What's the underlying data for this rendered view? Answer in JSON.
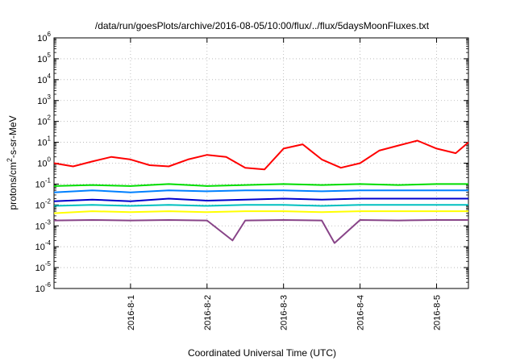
{
  "chart_data": {
    "type": "line",
    "title": "/data/run/goesPlots/archive/2016-08-05/10:00/flux/../flux/5daysMoonFluxes.txt",
    "xlabel": "Coordinated Universal Time (UTC)",
    "ylabel_parts": {
      "base": "protons/cm",
      "exp": "2",
      "tail": "-s-sr-MeV"
    },
    "yscale": "log",
    "ylim": [
      1e-06,
      1000000.0
    ],
    "y_ticks": [
      {
        "base": "10",
        "exp": "-6"
      },
      {
        "base": "10",
        "exp": "-5"
      },
      {
        "base": "10",
        "exp": "-4"
      },
      {
        "base": "10",
        "exp": "-3"
      },
      {
        "base": "10",
        "exp": "-2"
      },
      {
        "base": "10",
        "exp": "-1"
      },
      {
        "base": "10",
        "exp": "0"
      },
      {
        "base": "10",
        "exp": "1"
      },
      {
        "base": "10",
        "exp": "2"
      },
      {
        "base": "10",
        "exp": "3"
      },
      {
        "base": "10",
        "exp": "4"
      },
      {
        "base": "10",
        "exp": "5"
      },
      {
        "base": "10",
        "exp": "6"
      }
    ],
    "xlim": [
      "2016-07-31 00:00",
      "2016-08-05 10:00"
    ],
    "x_ticks": [
      "2016-8-1",
      "2016-8-2",
      "2016-8-3",
      "2016-8-4",
      "2016-8-5"
    ],
    "grid": true,
    "series": [
      {
        "color": "#ff0000",
        "x": [
          "2016-07-31 00:00",
          "2016-07-31 06:00",
          "2016-07-31 12:00",
          "2016-07-31 18:00",
          "2016-08-01 00:00",
          "2016-08-01 06:00",
          "2016-08-01 12:00",
          "2016-08-01 18:00",
          "2016-08-02 00:00",
          "2016-08-02 06:00",
          "2016-08-02 12:00",
          "2016-08-02 18:00",
          "2016-08-03 00:00",
          "2016-08-03 06:00",
          "2016-08-03 12:00",
          "2016-08-03 18:00",
          "2016-08-04 00:00",
          "2016-08-04 06:00",
          "2016-08-04 12:00",
          "2016-08-04 18:00",
          "2016-08-05 00:00",
          "2016-08-05 06:00",
          "2016-08-05 10:00"
        ],
        "y": [
          1.0,
          0.7,
          1.2,
          2.0,
          1.5,
          0.8,
          0.7,
          1.5,
          2.5,
          2.0,
          0.6,
          0.5,
          5,
          8,
          1.5,
          0.6,
          1.0,
          4,
          7,
          12,
          5,
          3,
          10
        ]
      },
      {
        "color": "#00dd00",
        "x": [
          "2016-07-31 00:00",
          "2016-07-31 12:00",
          "2016-08-01 00:00",
          "2016-08-01 12:00",
          "2016-08-02 00:00",
          "2016-08-02 12:00",
          "2016-08-03 00:00",
          "2016-08-03 12:00",
          "2016-08-04 00:00",
          "2016-08-04 12:00",
          "2016-08-05 00:00",
          "2016-08-05 10:00"
        ],
        "y": [
          0.08,
          0.09,
          0.08,
          0.1,
          0.08,
          0.09,
          0.1,
          0.09,
          0.1,
          0.09,
          0.1,
          0.1
        ]
      },
      {
        "color": "#0080ff",
        "x": [
          "2016-07-31 00:00",
          "2016-07-31 12:00",
          "2016-08-01 00:00",
          "2016-08-01 12:00",
          "2016-08-02 00:00",
          "2016-08-02 12:00",
          "2016-08-03 00:00",
          "2016-08-03 12:00",
          "2016-08-04 00:00",
          "2016-08-04 12:00",
          "2016-08-05 00:00",
          "2016-08-05 10:00"
        ],
        "y": [
          0.04,
          0.05,
          0.04,
          0.05,
          0.045,
          0.05,
          0.05,
          0.045,
          0.05,
          0.05,
          0.05,
          0.05
        ]
      },
      {
        "color": "#0000cc",
        "x": [
          "2016-07-31 00:00",
          "2016-07-31 12:00",
          "2016-08-01 00:00",
          "2016-08-01 12:00",
          "2016-08-02 00:00",
          "2016-08-02 12:00",
          "2016-08-03 00:00",
          "2016-08-03 12:00",
          "2016-08-04 00:00",
          "2016-08-04 12:00",
          "2016-08-05 00:00",
          "2016-08-05 10:00"
        ],
        "y": [
          0.015,
          0.018,
          0.015,
          0.02,
          0.016,
          0.018,
          0.02,
          0.018,
          0.02,
          0.02,
          0.02,
          0.02
        ]
      },
      {
        "color": "#00c0c0",
        "x": [
          "2016-07-31 00:00",
          "2016-07-31 12:00",
          "2016-08-01 00:00",
          "2016-08-01 12:00",
          "2016-08-02 00:00",
          "2016-08-02 12:00",
          "2016-08-03 00:00",
          "2016-08-03 12:00",
          "2016-08-04 00:00",
          "2016-08-04 12:00",
          "2016-08-05 00:00",
          "2016-08-05 10:00"
        ],
        "y": [
          0.009,
          0.01,
          0.009,
          0.01,
          0.009,
          0.01,
          0.01,
          0.009,
          0.01,
          0.01,
          0.01,
          0.01
        ]
      },
      {
        "color": "#ffff00",
        "x": [
          "2016-07-31 00:00",
          "2016-07-31 12:00",
          "2016-08-01 00:00",
          "2016-08-01 12:00",
          "2016-08-02 00:00",
          "2016-08-02 12:00",
          "2016-08-03 00:00",
          "2016-08-03 12:00",
          "2016-08-04 00:00",
          "2016-08-04 12:00",
          "2016-08-05 00:00",
          "2016-08-05 10:00"
        ],
        "y": [
          0.004,
          0.005,
          0.0045,
          0.005,
          0.0045,
          0.005,
          0.005,
          0.0045,
          0.005,
          0.005,
          0.005,
          0.005
        ]
      },
      {
        "color": "#884488",
        "x": [
          "2016-07-31 00:00",
          "2016-07-31 12:00",
          "2016-08-01 00:00",
          "2016-08-01 12:00",
          "2016-08-02 00:00",
          "2016-08-02 08:00",
          "2016-08-02 12:00",
          "2016-08-03 00:00",
          "2016-08-03 12:00",
          "2016-08-03 16:00",
          "2016-08-04 00:00",
          "2016-08-04 12:00",
          "2016-08-05 00:00",
          "2016-08-05 10:00"
        ],
        "y": [
          0.0018,
          0.0019,
          0.0018,
          0.0019,
          0.0018,
          0.0002,
          0.0018,
          0.0019,
          0.0018,
          0.00015,
          0.0019,
          0.0018,
          0.0019,
          0.0019
        ]
      }
    ]
  }
}
